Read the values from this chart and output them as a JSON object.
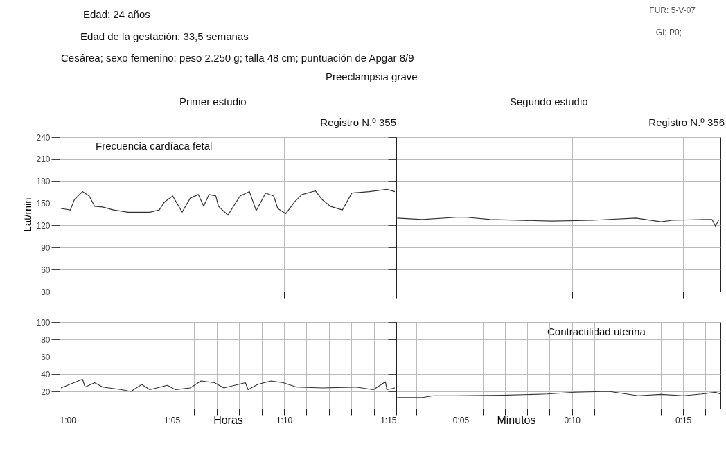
{
  "chart_data": [
    {
      "type": "line",
      "title": "Primer estudio",
      "subtitle": "Registro N.º 355",
      "ylabel": "Lat/min",
      "annotations": [
        "Edad: 24 años",
        "Edad de la gestación: 33,5 semanas",
        "Cesárea; sexo femenino; peso 2.250 g; talla 48 cm; puntuación de Apgar 8/9",
        "FUR: 5-V-07",
        "GI; P0;",
        "Preeclampsia grave",
        "Frecuencia cardíaca fetal"
      ],
      "x": [
        1.001,
        1.008,
        1.011,
        1.017,
        1.022,
        1.026,
        1.032,
        1.04,
        1.051,
        1.067,
        1.074,
        1.078,
        1.084,
        1.091,
        1.097,
        1.103,
        1.107,
        1.111,
        1.116,
        1.118,
        1.125,
        1.134,
        1.141,
        1.146,
        1.153,
        1.159,
        1.162,
        1.168,
        1.175,
        1.18,
        1.19,
        1.195,
        1.201,
        1.21,
        1.217,
        1.23,
        1.243,
        1.249
      ],
      "series": [
        {
          "color": "#333333",
          "values": [
            143,
            141,
            155,
            166,
            160,
            146,
            145,
            141,
            138,
            138,
            141,
            152,
            160,
            138,
            157,
            162,
            146,
            162,
            160,
            146,
            134,
            160,
            166,
            140,
            164,
            160,
            143,
            136,
            153,
            162,
            167,
            155,
            146,
            141,
            164,
            166,
            169,
            166
          ]
        }
      ],
      "xlim": [
        1,
        1.25
      ],
      "xticks": [
        {
          "value": 1,
          "label": null
        },
        {
          "value": 1.0833,
          "label": null
        },
        {
          "value": 1.1667,
          "label": null
        },
        {
          "value": 1.25,
          "label": null
        }
      ],
      "ylim": [
        30,
        240
      ],
      "yticks": [
        30,
        60,
        90,
        120,
        150,
        180,
        210,
        240
      ],
      "grid": true,
      "tick_labels": "y",
      "marker": "none"
    },
    {
      "type": "line",
      "title": "Segundo estudio",
      "subtitle": "Registro N.º 356",
      "x": [
        0.0357,
        0.0544,
        0.08,
        0.0877,
        0.1056,
        0.1516,
        0.1822,
        0.2146,
        0.2334,
        0.2419,
        0.2675,
        0.2717,
        0.2743,
        0.2768
      ],
      "series": [
        {
          "color": "#333333",
          "values": [
            130,
            128,
            131,
            131,
            128,
            126,
            127,
            130,
            125,
            127,
            128,
            128,
            119,
            128
          ]
        }
      ],
      "xlim": [
        0.035,
        0.278
      ],
      "xticks": [
        {
          "value": 0.0833,
          "label": null
        },
        {
          "value": 0.1667,
          "label": null
        },
        {
          "value": 0.25,
          "label": null
        }
      ],
      "ylim": [
        30,
        240
      ],
      "yticks": [
        30,
        60,
        90,
        120,
        150,
        180,
        210,
        240
      ],
      "grid": true,
      "tick_labels": false,
      "marker": "none"
    },
    {
      "type": "line",
      "xlabel": "Horas",
      "x": [
        1.001,
        1.017,
        1.019,
        1.026,
        1.032,
        1.046,
        1.053,
        1.061,
        1.067,
        1.08,
        1.086,
        1.097,
        1.105,
        1.115,
        1.122,
        1.138,
        1.14,
        1.147,
        1.157,
        1.166,
        1.176,
        1.195,
        1.22,
        1.233,
        1.242,
        1.243,
        1.249
      ],
      "series": [
        {
          "color": "#333333",
          "values": [
            24,
            34,
            25,
            30,
            25,
            22,
            20,
            28,
            22,
            27,
            22,
            24,
            32,
            30,
            24,
            30,
            22,
            28,
            32,
            30,
            25,
            24,
            25,
            22,
            31,
            22,
            24
          ]
        }
      ],
      "xlim": [
        1,
        1.25
      ],
      "xticks": [
        {
          "value": 1,
          "label": "1:00"
        },
        {
          "value": 1.0167,
          "label": null
        },
        {
          "value": 1.0333,
          "label": null
        },
        {
          "value": 1.05,
          "label": null
        },
        {
          "value": 1.0667,
          "label": null
        },
        {
          "value": 1.0833,
          "label": "1:05"
        },
        {
          "value": 1.1,
          "label": null
        },
        {
          "value": 1.1167,
          "label": null
        },
        {
          "value": 1.1333,
          "label": null
        },
        {
          "value": 1.15,
          "label": null
        },
        {
          "value": 1.1667,
          "label": "1:10"
        },
        {
          "value": 1.1833,
          "label": null
        },
        {
          "value": 1.2,
          "label": null
        },
        {
          "value": 1.2167,
          "label": null
        },
        {
          "value": 1.2333,
          "label": null
        },
        {
          "value": 1.25,
          "label": "1:15"
        }
      ],
      "ylim": [
        0,
        100
      ],
      "yticks": [
        20,
        40,
        60,
        80,
        100
      ],
      "grid": true,
      "marker": "none"
    },
    {
      "type": "line",
      "xlabel": "Minutos",
      "annotations": [
        "Contractilidad uterina"
      ],
      "x": [
        0.0357,
        0.0544,
        0.063,
        0.08,
        0.1141,
        0.1481,
        0.1686,
        0.1942,
        0.2163,
        0.2334,
        0.2504,
        0.264,
        0.2743,
        0.2777
      ],
      "series": [
        {
          "color": "#333333",
          "values": [
            13,
            13,
            15,
            15,
            15.5,
            17,
            19,
            20,
            15,
            16.5,
            15,
            17,
            19,
            17
          ]
        }
      ],
      "xlim": [
        0.035,
        0.278
      ],
      "xticks": [
        {
          "value": 0.05,
          "label": null
        },
        {
          "value": 0.0667,
          "label": null
        },
        {
          "value": 0.0833,
          "label": "0:05"
        },
        {
          "value": 0.1,
          "label": null
        },
        {
          "value": 0.1167,
          "label": null
        },
        {
          "value": 0.1333,
          "label": null
        },
        {
          "value": 0.15,
          "label": null
        },
        {
          "value": 0.1667,
          "label": "0:10"
        },
        {
          "value": 0.1833,
          "label": null
        },
        {
          "value": 0.2,
          "label": null
        },
        {
          "value": 0.2167,
          "label": null
        },
        {
          "value": 0.2333,
          "label": null
        },
        {
          "value": 0.25,
          "label": "0:15"
        },
        {
          "value": 0.2667,
          "label": null
        }
      ],
      "ylim": [
        0,
        100
      ],
      "yticks": [
        20,
        40,
        60,
        80,
        100
      ],
      "grid": true,
      "tick_labels": "x",
      "marker": "none"
    }
  ]
}
